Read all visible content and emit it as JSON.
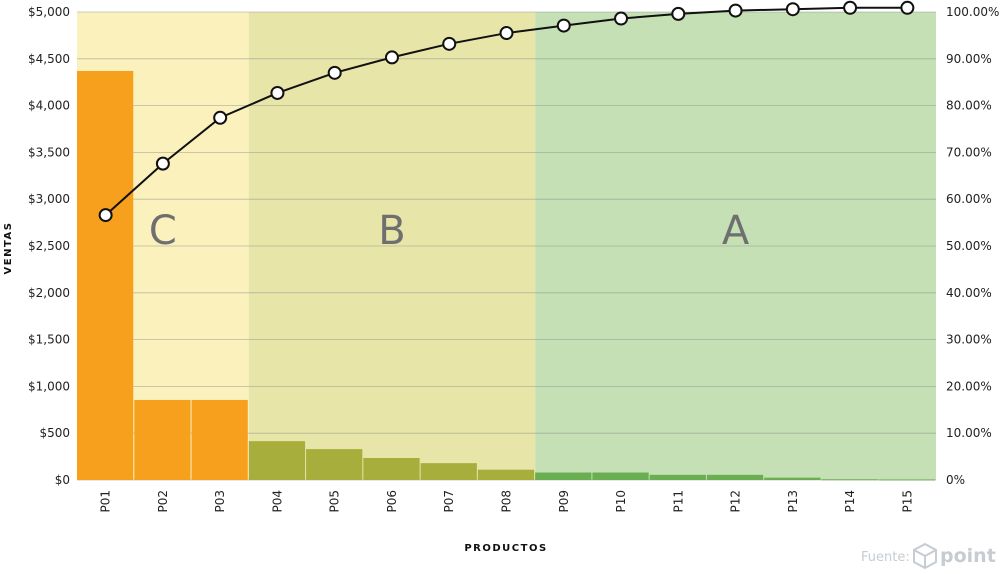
{
  "chart_data": {
    "type": "bar",
    "xlabel": "PRODUCTOS",
    "ylabel": "VENTAS",
    "categories": [
      "P01",
      "P02",
      "P03",
      "P04",
      "P05",
      "P06",
      "P07",
      "P08",
      "P09",
      "P10",
      "P11",
      "P12",
      "P13",
      "P14",
      "P15"
    ],
    "values": [
      4370,
      855,
      855,
      415,
      330,
      235,
      180,
      110,
      80,
      80,
      55,
      55,
      25,
      8,
      6
    ],
    "line": {
      "axis": "right",
      "values": [
        56.6,
        67.6,
        77.4,
        82.7,
        87.0,
        90.3,
        93.2,
        95.5,
        97.1,
        98.6,
        99.6,
        100.3,
        100.6,
        100.9,
        100.9
      ]
    },
    "ylim": [
      0,
      5000
    ],
    "yticks": [
      "$0",
      "$500",
      "$1,000",
      "$1,500",
      "$2,000",
      "$2,500",
      "$3,000",
      "$3,500",
      "$4,000",
      "$4,500",
      "$5,000"
    ],
    "y2lim": [
      0,
      100
    ],
    "y2ticks": [
      "0%",
      "10.00%",
      "20.00%",
      "30.00%",
      "40.00%",
      "50.00%",
      "60.00%",
      "70.00%",
      "80.00%",
      "90.00%",
      "100.00%"
    ],
    "zones": [
      {
        "label": "C",
        "from": 0,
        "to": 3,
        "bg": "#faf1bd",
        "bar": "#f7a01e"
      },
      {
        "label": "B",
        "from": 3,
        "to": 8,
        "bg": "#e7e6a8",
        "bar": "#a8ae3b"
      },
      {
        "label": "A",
        "from": 8,
        "to": 15,
        "bg": "#c5e0b5",
        "bar": "#6aae52"
      }
    ],
    "grid": true,
    "colors": {
      "line": "#111111",
      "marker_fill": "#ffffff",
      "gridline": "#8a8a8a"
    }
  },
  "footer": {
    "source_label": "Fuente:",
    "brand": "point",
    "logo_icon": "cube-logo-icon"
  }
}
